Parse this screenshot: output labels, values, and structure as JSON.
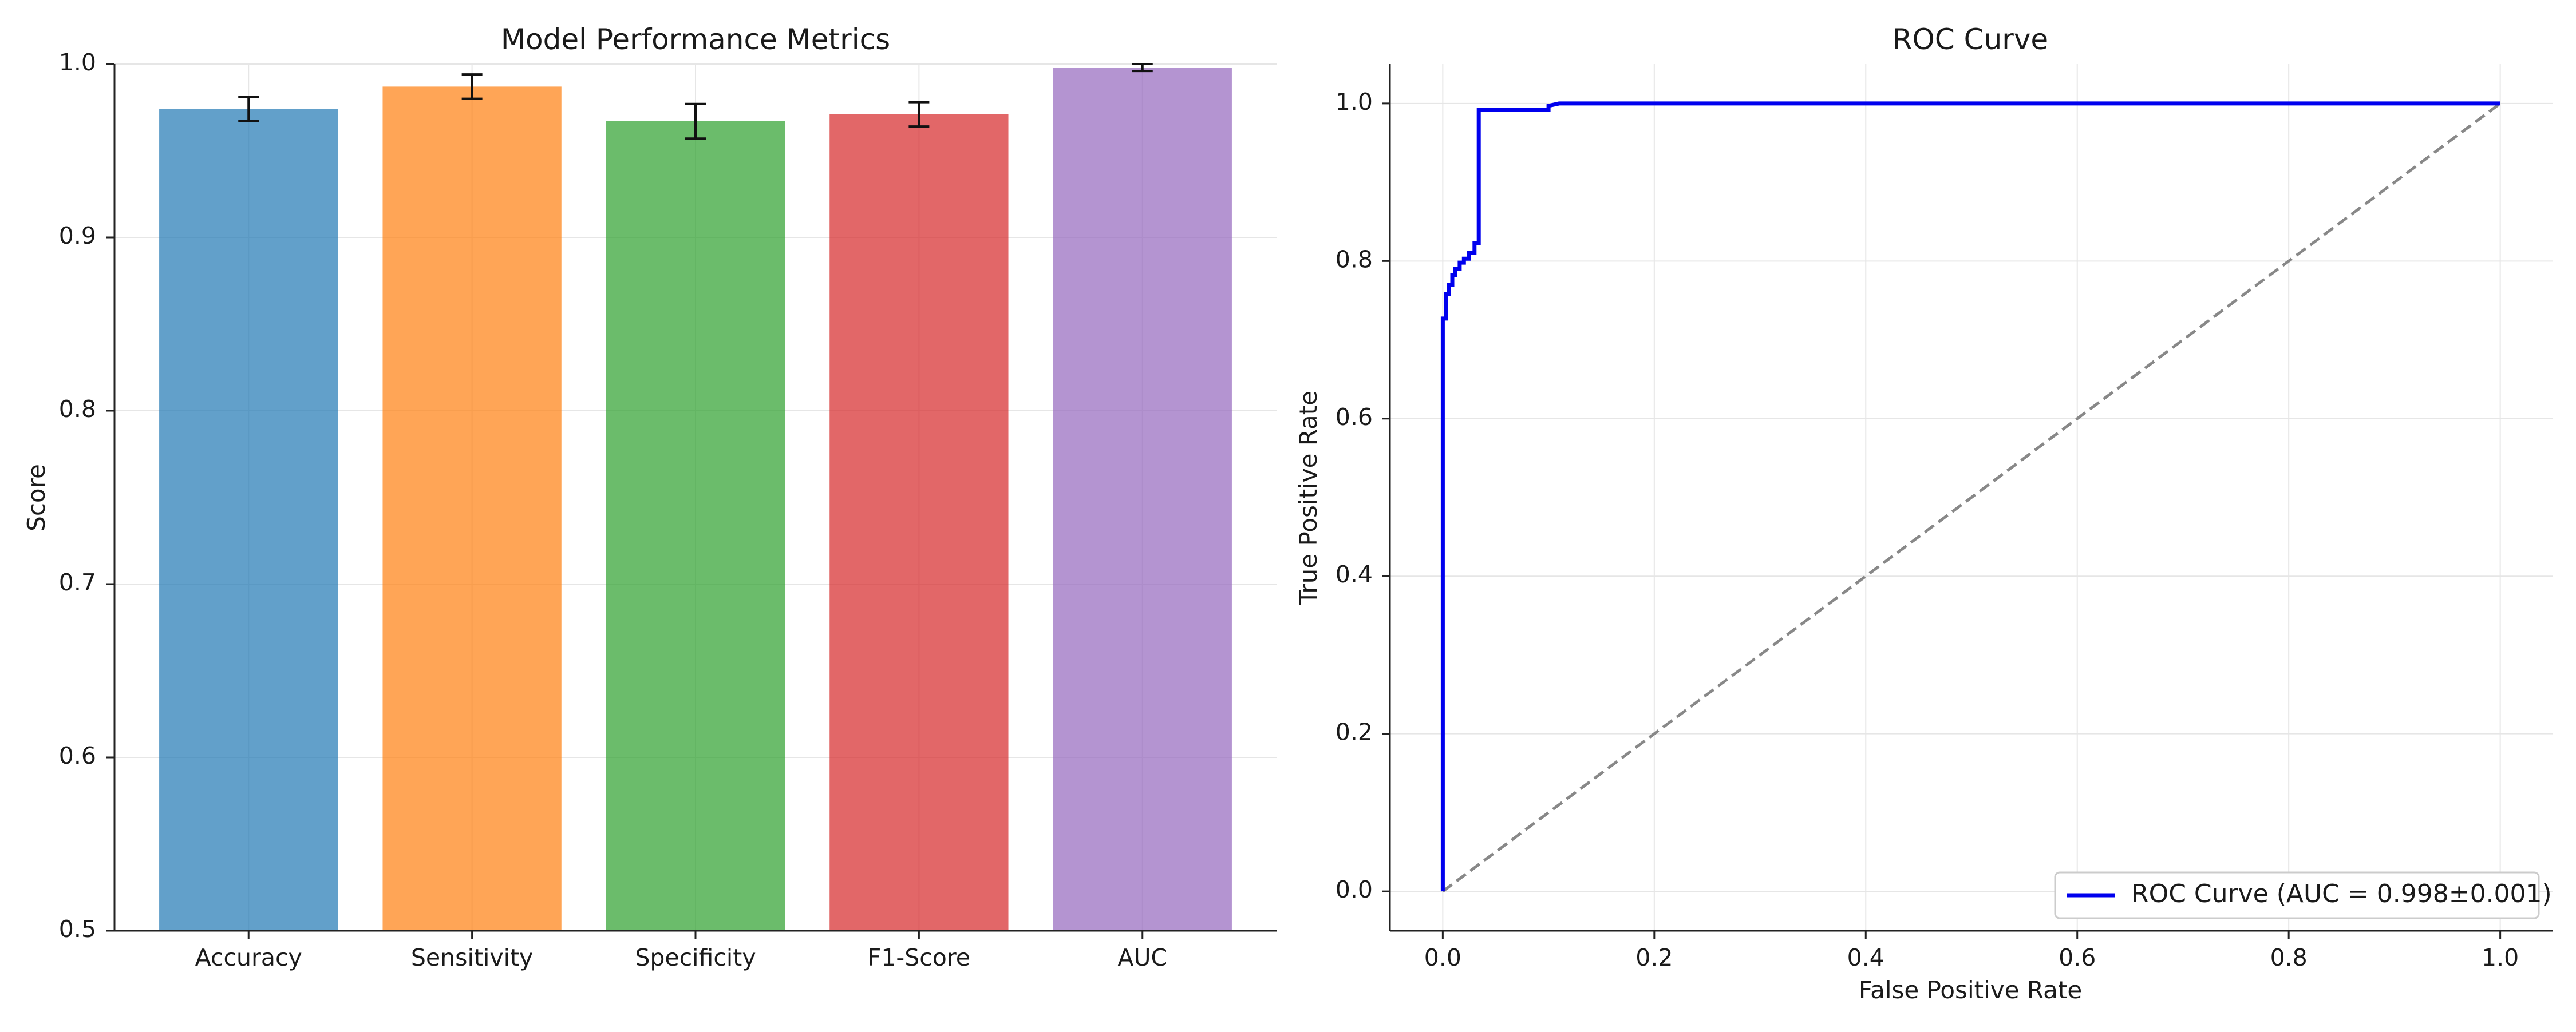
{
  "chart_data": [
    {
      "type": "bar",
      "title": "Model Performance Metrics",
      "xlabel": "",
      "ylabel": "Score",
      "ylim": [
        0.5,
        1.0
      ],
      "yticks": [
        "0.5",
        "0.6",
        "0.7",
        "0.8",
        "0.9",
        "1.0"
      ],
      "grid": true,
      "categories": [
        "Accuracy",
        "Sensitivity",
        "Specificity",
        "F1-Score",
        "AUC"
      ],
      "values": [
        0.974,
        0.987,
        0.967,
        0.971,
        0.998
      ],
      "errors": [
        0.007,
        0.007,
        0.01,
        0.007,
        0.002
      ],
      "colors": [
        "#1f77b4",
        "#ff7f0e",
        "#2ca02c",
        "#d62728",
        "#9467bd"
      ]
    },
    {
      "type": "line",
      "title": "ROC Curve",
      "xlabel": "False Positive Rate",
      "ylabel": "True Positive Rate",
      "xlim": [
        -0.05,
        1.05
      ],
      "ylim": [
        -0.05,
        1.05
      ],
      "xticks": [
        "0.0",
        "0.2",
        "0.4",
        "0.6",
        "0.8",
        "1.0"
      ],
      "yticks": [
        "0.0",
        "0.2",
        "0.4",
        "0.6",
        "0.8",
        "1.0"
      ],
      "grid": true,
      "legend_position": "lower-right",
      "series": [
        {
          "name": "ROC Curve (AUC = 0.998±0.001)",
          "color": "#0000ee",
          "x": [
            0.0,
            0.0,
            0.003,
            0.003,
            0.006,
            0.006,
            0.009,
            0.009,
            0.012,
            0.012,
            0.016,
            0.016,
            0.02,
            0.02,
            0.025,
            0.025,
            0.03,
            0.03,
            0.034,
            0.034,
            0.1,
            0.1,
            0.11,
            1.0
          ],
          "y": [
            0.0,
            0.727,
            0.727,
            0.758,
            0.758,
            0.77,
            0.77,
            0.782,
            0.782,
            0.79,
            0.79,
            0.798,
            0.798,
            0.803,
            0.803,
            0.81,
            0.81,
            0.823,
            0.823,
            0.992,
            0.992,
            0.997,
            1.0,
            1.0
          ]
        },
        {
          "name": "",
          "color": "#888888",
          "dashed": true,
          "x": [
            0.0,
            1.0
          ],
          "y": [
            0.0,
            1.0
          ]
        }
      ]
    }
  ]
}
